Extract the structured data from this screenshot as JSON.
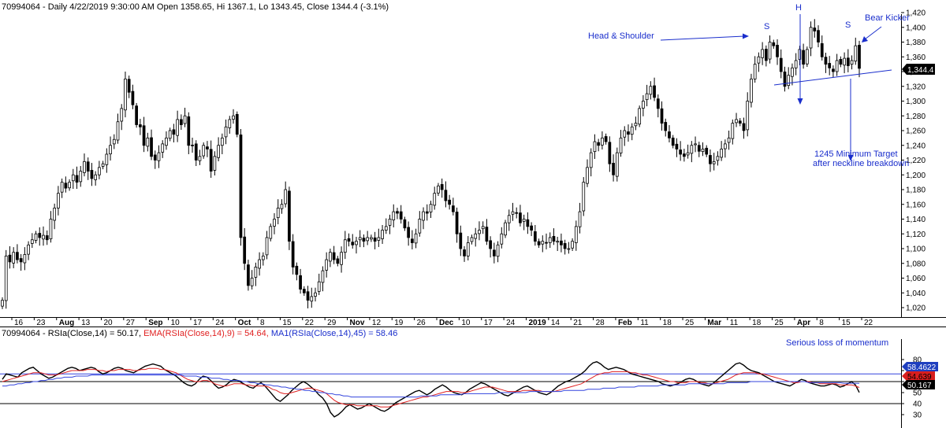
{
  "header": {
    "title": "70994064 - Daily 4/22/2019 9:30:00 AM Open 1358.65, Hi 1367.1, Lo 1343.45, Close 1344.4 (-3.1%)"
  },
  "rsi_header": {
    "prefix": "70994064 - RSIa(Close,14) = 50.17, ",
    "ema": "EMA(RSIa(Close,14),9) = 54.64, ",
    "ma": "MA1(RSIa(Close,14),45) = 58.46"
  },
  "colors": {
    "up_candle_fill": "#ffffff",
    "down_candle_fill": "#000000",
    "annotation_blue": "#1a2ecc",
    "ema_red": "#e02020",
    "ma_blue": "#3344dd",
    "last_price_bg": "#000000",
    "ma_badge_bg": "#1f3fbf",
    "ema_badge_bg": "#d81e1e",
    "grid_line": "#000000"
  },
  "annotations": {
    "head_shoulder": "Head & Shoulder",
    "left_shoulder": "S",
    "head": "H",
    "right_shoulder": "S",
    "bear_kicker": "Bear Kicker",
    "target_line1": "1245 Minimum Target",
    "target_line2": "after neckline breakdown",
    "momentum": "Serious loss of momentum"
  },
  "badges": {
    "last_price": "1,344.4",
    "ma_value": "58.4622",
    "ema_value": "54.639",
    "rsi_value": "50.167"
  },
  "chart_data": [
    {
      "type": "candlestick",
      "title": "70994064 - Daily 4/22/2019 9:30:00 AM Open 1358.65, Hi 1367.1, Lo 1343.45, Close 1344.4 (-3.1%)",
      "ylim": [
        1010,
        1425
      ],
      "y_ticks": [
        "1,020",
        "1,040",
        "1,060",
        "1,080",
        "1,100",
        "1,120",
        "1,140",
        "1,160",
        "1,180",
        "1,200",
        "1,220",
        "1,240",
        "1,260",
        "1,280",
        "1,300",
        "1,320",
        "1,340",
        "1,360",
        "1,380",
        "1,400",
        "1,420"
      ],
      "x_tick_labels": [
        "16",
        "23",
        "Aug",
        "13",
        "20",
        "27",
        "Sep",
        "10",
        "17",
        "24",
        "Oct",
        "8",
        "15",
        "22",
        "29",
        "Nov",
        "12",
        "19",
        "26",
        "Dec",
        "10",
        "17",
        "24",
        "2019",
        "14",
        "21",
        "28",
        "Feb",
        "11",
        "18",
        "25",
        "Mar",
        "11",
        "18",
        "25",
        "Apr",
        "8",
        "15",
        "22"
      ],
      "closes": [
        1030,
        1090,
        1082,
        1095,
        1085,
        1082,
        1092,
        1105,
        1112,
        1120,
        1115,
        1118,
        1112,
        1140,
        1155,
        1175,
        1190,
        1182,
        1190,
        1200,
        1190,
        1205,
        1218,
        1205,
        1195,
        1200,
        1210,
        1215,
        1228,
        1240,
        1248,
        1272,
        1290,
        1330,
        1312,
        1295,
        1268,
        1265,
        1240,
        1250,
        1225,
        1220,
        1230,
        1242,
        1250,
        1260,
        1255,
        1275,
        1268,
        1280,
        1240,
        1240,
        1220,
        1225,
        1240,
        1235,
        1205,
        1225,
        1240,
        1250,
        1265,
        1275,
        1280,
        1255,
        1115,
        1080,
        1050,
        1060,
        1075,
        1085,
        1090,
        1115,
        1130,
        1140,
        1155,
        1160,
        1180,
        1110,
        1075,
        1065,
        1045,
        1040,
        1030,
        1035,
        1040,
        1055,
        1070,
        1085,
        1095,
        1085,
        1080,
        1095,
        1112,
        1110,
        1105,
        1110,
        1115,
        1110,
        1115,
        1115,
        1110,
        1115,
        1125,
        1130,
        1140,
        1150,
        1148,
        1140,
        1128,
        1115,
        1108,
        1120,
        1140,
        1150,
        1148,
        1160,
        1175,
        1185,
        1180,
        1165,
        1160,
        1150,
        1120,
        1100,
        1090,
        1108,
        1115,
        1120,
        1125,
        1130,
        1110,
        1100,
        1090,
        1105,
        1120,
        1135,
        1145,
        1150,
        1148,
        1135,
        1140,
        1130,
        1125,
        1110,
        1105,
        1110,
        1108,
        1115,
        1110,
        1110,
        1105,
        1100,
        1100,
        1110,
        1130,
        1150,
        1190,
        1210,
        1230,
        1245,
        1240,
        1250,
        1245,
        1215,
        1200,
        1230,
        1250,
        1260,
        1255,
        1265,
        1270,
        1290,
        1300,
        1310,
        1320,
        1305,
        1290,
        1270,
        1260,
        1250,
        1240,
        1235,
        1228,
        1225,
        1230,
        1240,
        1242,
        1232,
        1235,
        1228,
        1215,
        1218,
        1225,
        1235,
        1242,
        1250,
        1270,
        1275,
        1270,
        1260,
        1300,
        1330,
        1350,
        1360,
        1370,
        1355,
        1380,
        1375,
        1360,
        1340,
        1320,
        1335,
        1345,
        1355,
        1370,
        1350,
        1370,
        1400,
        1395,
        1380,
        1360,
        1350,
        1345,
        1340,
        1355,
        1350,
        1358,
        1348,
        1355,
        1375,
        1344.4
      ]
    },
    {
      "type": "line",
      "title": "70994064 - RSIa(Close,14) = 50.17, EMA(RSIa(Close,14),9) = 54.64, MA1(RSIa(Close,14),45) = 58.46",
      "ylim": [
        25,
        85
      ],
      "y_ticks": [
        "30",
        "40",
        "50",
        "60",
        "70",
        "80"
      ],
      "horizontal_lines": [
        40,
        60,
        67
      ],
      "series": [
        {
          "name": "RSIa(Close,14)",
          "values": [
            62,
            67,
            66,
            65,
            64,
            68,
            70,
            72,
            73,
            70,
            67,
            65,
            63,
            64,
            66,
            68,
            70,
            72,
            73,
            72,
            70,
            71,
            72,
            73,
            72,
            69,
            67,
            68,
            70,
            72,
            73,
            72,
            70,
            69,
            68,
            70,
            72,
            74,
            75,
            76,
            75,
            74,
            71,
            69,
            67,
            65,
            62,
            59,
            57,
            56,
            58,
            62,
            65,
            64,
            61,
            57,
            54,
            55,
            57,
            60,
            62,
            61,
            59,
            57,
            55,
            54,
            57,
            59,
            56,
            52,
            48,
            44,
            42,
            45,
            48,
            52,
            55,
            58,
            60,
            58,
            55,
            52,
            48,
            45,
            40,
            32,
            28,
            30,
            33,
            37,
            39,
            37,
            35,
            36,
            38,
            40,
            38,
            36,
            34,
            33,
            35,
            38,
            41,
            43,
            45,
            47,
            49,
            51,
            52,
            50,
            48,
            50,
            53,
            55,
            57,
            55,
            52,
            50,
            49,
            48,
            50,
            53,
            55,
            57,
            59,
            58,
            56,
            54,
            52,
            50,
            48,
            47,
            49,
            51,
            53,
            55,
            56,
            54,
            52,
            50,
            49,
            48,
            50,
            53,
            56,
            58,
            60,
            61,
            63,
            65,
            67,
            70,
            74,
            77,
            78,
            76,
            73,
            71,
            72,
            73,
            72,
            71,
            69,
            67,
            66,
            65,
            64,
            63,
            62,
            61,
            60,
            58,
            57,
            56,
            57,
            58,
            60,
            62,
            63,
            62,
            60,
            58,
            57,
            56,
            58,
            61,
            64,
            67,
            70,
            73,
            76,
            77,
            75,
            72,
            70,
            69,
            68,
            66,
            64,
            62,
            60,
            59,
            58,
            57,
            56,
            58,
            60,
            62,
            61,
            59,
            58,
            57,
            56,
            56,
            57,
            58,
            57,
            55,
            56,
            58,
            60,
            57,
            50.17
          ]
        },
        {
          "name": "EMA(RSIa(Close,14),9)",
          "values": [
            60,
            61,
            62,
            63,
            64,
            65,
            66,
            67,
            68,
            68,
            68,
            67,
            66,
            66,
            66,
            67,
            68,
            69,
            70,
            70,
            70,
            70,
            71,
            71,
            71,
            70,
            70,
            69,
            70,
            70,
            71,
            71,
            71,
            71,
            70,
            70,
            71,
            71,
            72,
            72,
            72,
            71,
            71,
            70,
            69,
            68,
            66,
            64,
            62,
            61,
            60,
            60,
            61,
            61,
            60,
            58,
            57,
            56,
            56,
            57,
            58,
            58,
            58,
            57,
            57,
            56,
            56,
            56,
            56,
            55,
            53,
            52,
            50,
            49,
            49,
            50,
            51,
            52,
            53,
            54,
            54,
            53,
            52,
            51,
            49,
            46,
            43,
            41,
            40,
            39,
            39,
            39,
            38,
            38,
            38,
            38,
            38,
            38,
            37,
            37,
            37,
            38,
            39,
            40,
            41,
            42,
            43,
            44,
            45,
            46,
            46,
            47,
            48,
            49,
            50,
            51,
            51,
            51,
            51,
            50,
            50,
            51,
            52,
            53,
            54,
            55,
            55,
            55,
            54,
            53,
            52,
            51,
            51,
            51,
            51,
            52,
            52,
            52,
            52,
            52,
            51,
            51,
            51,
            51,
            52,
            53,
            54,
            55,
            56,
            57,
            58,
            60,
            62,
            64,
            66,
            67,
            68,
            68,
            69,
            69,
            69,
            69,
            69,
            68,
            68,
            67,
            66,
            66,
            65,
            64,
            63,
            62,
            61,
            60,
            60,
            59,
            59,
            59,
            60,
            60,
            60,
            59,
            59,
            58,
            58,
            59,
            60,
            61,
            62,
            64,
            66,
            67,
            68,
            68,
            68,
            68,
            67,
            67,
            66,
            65,
            64,
            63,
            62,
            61,
            60,
            59,
            59,
            60,
            60,
            60,
            59,
            59,
            58,
            58,
            58,
            58,
            58,
            57,
            57,
            57,
            57,
            56,
            54.64
          ]
        },
        {
          "name": "MA1(RSIa(Close,14),45)",
          "values": [
            56,
            56,
            57,
            57,
            58,
            58,
            59,
            59,
            60,
            60,
            61,
            61,
            62,
            62,
            63,
            63,
            64,
            64,
            64,
            65,
            65,
            65,
            65,
            66,
            66,
            66,
            66,
            66,
            66,
            66,
            66,
            66,
            66,
            66,
            66,
            66,
            66,
            66,
            66,
            66,
            66,
            66,
            66,
            66,
            66,
            66,
            66,
            65,
            65,
            65,
            65,
            64,
            64,
            64,
            63,
            63,
            63,
            62,
            62,
            61,
            61,
            61,
            60,
            60,
            59,
            59,
            58,
            58,
            57,
            57,
            56,
            56,
            55,
            55,
            54,
            54,
            53,
            53,
            52,
            52,
            51,
            51,
            50,
            50,
            49,
            49,
            48,
            48,
            47,
            47,
            46,
            46,
            46,
            46,
            46,
            46,
            46,
            46,
            46,
            46,
            46,
            46,
            46,
            46,
            46,
            46,
            46,
            46,
            47,
            47,
            47,
            47,
            47,
            48,
            48,
            48,
            48,
            48,
            48,
            49,
            49,
            49,
            49,
            49,
            49,
            49,
            49,
            49,
            50,
            50,
            50,
            50,
            50,
            50,
            50,
            50,
            51,
            51,
            51,
            51,
            51,
            51,
            51,
            51,
            51,
            52,
            52,
            52,
            52,
            52,
            52,
            53,
            53,
            53,
            53,
            54,
            54,
            54,
            54,
            55,
            55,
            55,
            55,
            55,
            56,
            56,
            56,
            56,
            56,
            56,
            57,
            57,
            57,
            57,
            57,
            57,
            57,
            58,
            58,
            58,
            58,
            58,
            58,
            58,
            58,
            58,
            58,
            59,
            59,
            59,
            59,
            59,
            59,
            60,
            60,
            60,
            60,
            60,
            60,
            60,
            60,
            60,
            60,
            60,
            60,
            60,
            60,
            60,
            59,
            59,
            59,
            59,
            59,
            59,
            59,
            59,
            59,
            58.5,
            58.5,
            58.5,
            58.5,
            58.46
          ]
        }
      ]
    }
  ]
}
